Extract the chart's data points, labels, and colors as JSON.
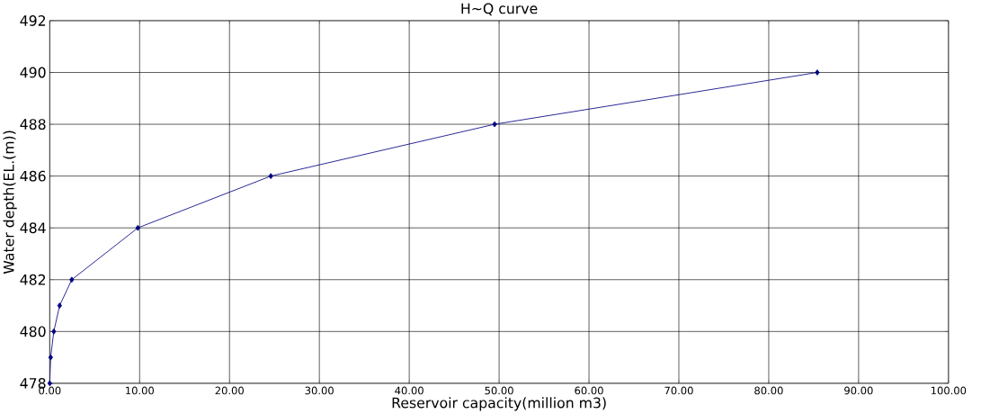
{
  "chart_data": {
    "type": "line",
    "title": "H∼Q curve",
    "xlabel": "Reservoir capacity(million m3)",
    "ylabel": "Water depth(EL.(m))",
    "series": [
      {
        "color": "#000080",
        "x": [
          0.0,
          0.1,
          0.45,
          1.1,
          2.45,
          9.8,
          24.6,
          49.5,
          85.4
        ],
        "values": [
          478,
          479,
          480,
          481,
          482,
          484,
          486,
          488,
          490
        ]
      }
    ],
    "xlim": [
      0,
      100
    ],
    "xticks": [
      {
        "value": 0,
        "label": "0.00"
      },
      {
        "value": 10,
        "label": "10.00"
      },
      {
        "value": 20,
        "label": "20.00"
      },
      {
        "value": 30,
        "label": "30.00"
      },
      {
        "value": 40,
        "label": "40.00"
      },
      {
        "value": 50,
        "label": "50.00"
      },
      {
        "value": 60,
        "label": "60.00"
      },
      {
        "value": 70,
        "label": "70.00"
      },
      {
        "value": 80,
        "label": "80.00"
      },
      {
        "value": 90,
        "label": "90.00"
      },
      {
        "value": 100,
        "label": "100.00"
      }
    ],
    "ylim": [
      478,
      492
    ],
    "yticks": [
      478,
      480,
      482,
      484,
      486,
      488,
      490,
      492
    ],
    "grid": true,
    "marker": "diamond",
    "line_style": "solid"
  }
}
